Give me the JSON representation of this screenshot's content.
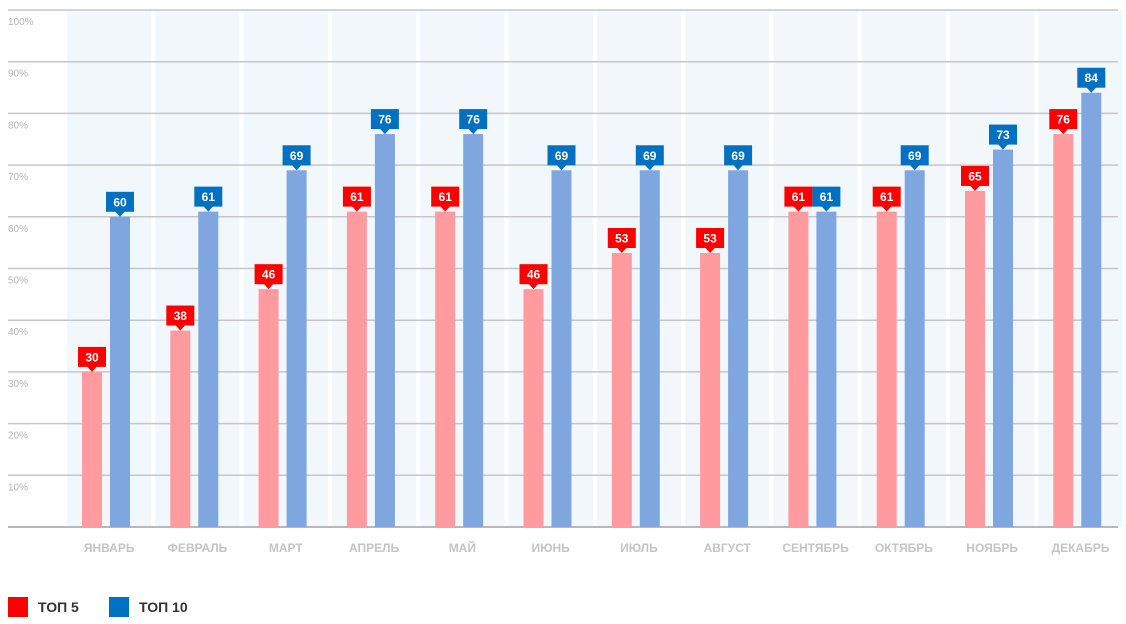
{
  "chart_data": {
    "type": "bar",
    "title": "",
    "xlabel": "",
    "ylabel": "",
    "ylim": [
      0,
      100
    ],
    "y_ticks": [
      "10%",
      "20%",
      "30%",
      "40%",
      "50%",
      "60%",
      "70%",
      "80%",
      "90%",
      "100%"
    ],
    "categories": [
      "ЯНВАРЬ",
      "ФЕВРАЛЬ",
      "МАРТ",
      "АПРЕЛЬ",
      "МАЙ",
      "ИЮНЬ",
      "ИЮЛЬ",
      "АВГУСТ",
      "СЕНТЯБРЬ",
      "ОКТЯБРЬ",
      "НОЯБРЬ",
      "ДЕКАБРЬ"
    ],
    "series": [
      {
        "name": "ТОП 5",
        "values": [
          30,
          38,
          46,
          61,
          61,
          46,
          53,
          53,
          61,
          61,
          65,
          76
        ],
        "bar_color": "#ff9a9e",
        "label_color": "#ff0000"
      },
      {
        "name": "ТОП 10",
        "values": [
          60,
          61,
          69,
          76,
          76,
          69,
          69,
          69,
          61,
          69,
          73,
          84
        ],
        "bar_color": "#7fa6de",
        "label_color": "#0070c0"
      }
    ],
    "grid": true,
    "legend_position": "bottom-left"
  }
}
